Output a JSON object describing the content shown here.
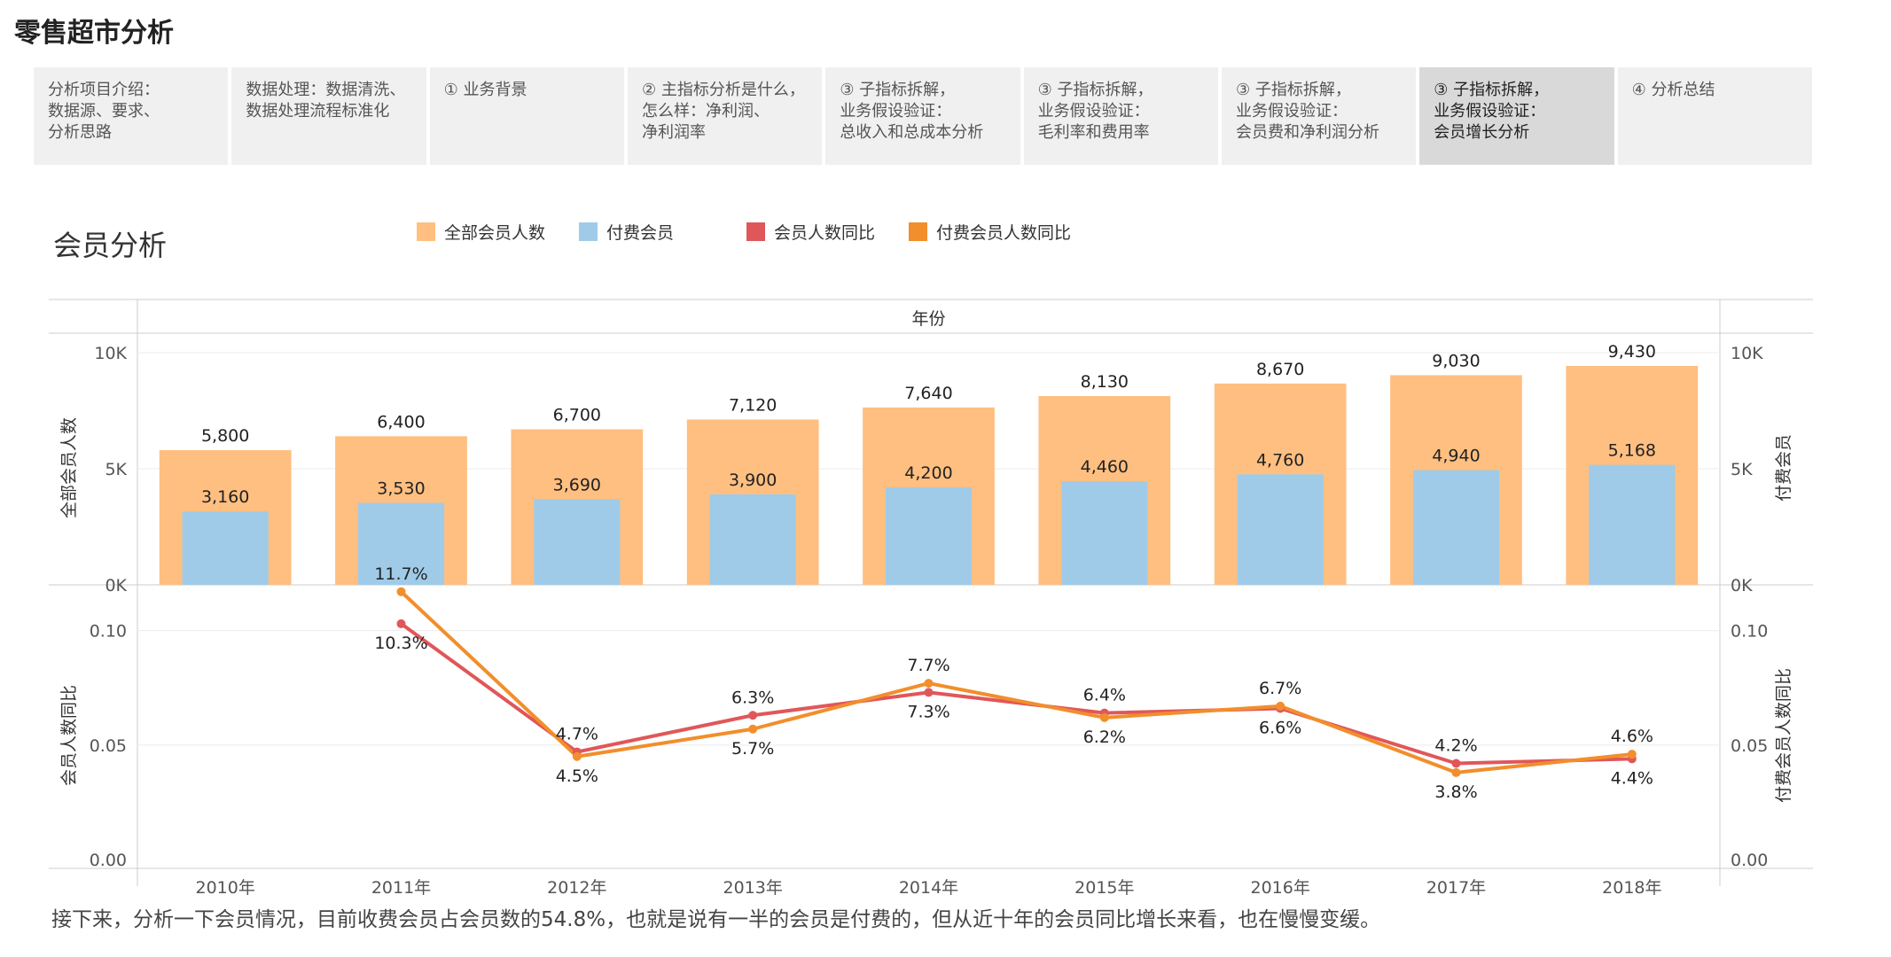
{
  "page": {
    "title": "零售超市分析"
  },
  "story": {
    "points": [
      {
        "label": "分析项目介绍：\n数据源、要求、\n分析思路",
        "active": false
      },
      {
        "label": "数据处理：数据清洗、\n数据处理流程标准化",
        "active": false
      },
      {
        "label": "① 业务背景",
        "active": false
      },
      {
        "label": "② 主指标分析是什么，\n怎么样：净利润、\n净利润率",
        "active": false
      },
      {
        "label": "③ 子指标拆解，\n业务假设验证：\n总收入和总成本分析",
        "active": false
      },
      {
        "label": "③ 子指标拆解，\n业务假设验证：\n毛利率和费用率",
        "active": false
      },
      {
        "label": "③ 子指标拆解，\n业务假设验证：\n会员费和净利润分析",
        "active": false
      },
      {
        "label": "③ 子指标拆解，\n业务假设验证：\n会员增长分析",
        "active": true
      },
      {
        "label": "④ 分析总结",
        "active": false
      }
    ]
  },
  "sheet": {
    "title": "会员分析"
  },
  "colors": {
    "all_members": "#FFBF80",
    "paid_members": "#A0CBE8",
    "member_yoy": "#E05759",
    "paid_yoy": "#F28E2B",
    "grid": "#ececec",
    "axis": "#cccccc"
  },
  "legend": [
    {
      "label": "全部会员人数",
      "color": "#FFBF80",
      "offset": 0
    },
    {
      "label": "付费会员",
      "color": "#A0CBE8",
      "offset": 183
    },
    {
      "label": "会员人数同比",
      "color": "#E05759",
      "offset": 372
    },
    {
      "label": "付费会员人数同比",
      "color": "#F28E2B",
      "offset": 555
    }
  ],
  "chart_data": {
    "type": "bar",
    "column_header": "年份",
    "categories": [
      "2010年",
      "2011年",
      "2012年",
      "2013年",
      "2014年",
      "2015年",
      "2016年",
      "2017年",
      "2018年"
    ],
    "top": {
      "type": "bar",
      "y_left_label": "全部会员人数",
      "y_right_label": "付费会员",
      "ylim": [
        0,
        10000
      ],
      "y_ticks": [
        0,
        5000,
        10000
      ],
      "y_tick_labels": [
        "0K",
        "5K",
        "10K"
      ],
      "series": [
        {
          "name": "全部会员人数",
          "values": [
            5800,
            6400,
            6700,
            7120,
            7640,
            8130,
            8670,
            9030,
            9430
          ],
          "labels": [
            "5,800",
            "6,400",
            "6,700",
            "7,120",
            "7,640",
            "8,130",
            "8,670",
            "9,030",
            "9,430"
          ]
        },
        {
          "name": "付费会员",
          "values": [
            3160,
            3530,
            3690,
            3900,
            4200,
            4460,
            4760,
            4940,
            5168
          ],
          "labels": [
            "3,160",
            "3,530",
            "3,690",
            "3,900",
            "4,200",
            "4,460",
            "4,760",
            "4,940",
            "5,168"
          ]
        }
      ]
    },
    "bottom": {
      "type": "line",
      "y_left_label": "会员人数同比",
      "y_right_label": "付费会员人数同比",
      "ylim": [
        0,
        0.12
      ],
      "y_ticks": [
        0.0,
        0.05,
        0.1
      ],
      "y_tick_labels": [
        "0.00",
        "0.05",
        "0.10"
      ],
      "series": [
        {
          "name": "会员人数同比",
          "values": [
            null,
            0.103,
            0.047,
            0.063,
            0.073,
            0.064,
            0.066,
            0.042,
            0.044
          ],
          "labels": [
            null,
            "10.3%",
            "4.7%",
            "6.3%",
            "7.3%",
            "6.4%",
            "6.6%",
            "4.2%",
            "4.4%"
          ]
        },
        {
          "name": "付费会员人数同比",
          "values": [
            null,
            0.117,
            0.045,
            0.057,
            0.077,
            0.062,
            0.067,
            0.038,
            0.046
          ],
          "labels": [
            null,
            "11.7%",
            "4.5%",
            "5.7%",
            "7.7%",
            "6.2%",
            "6.7%",
            "3.8%",
            "4.6%"
          ]
        }
      ]
    }
  },
  "caption": "接下来，分析一下会员情况，目前收费会员占会员数的54.8%，也就是说有一半的会员是付费的，但从近十年的会员同比增长来看，也在慢慢变缓。"
}
